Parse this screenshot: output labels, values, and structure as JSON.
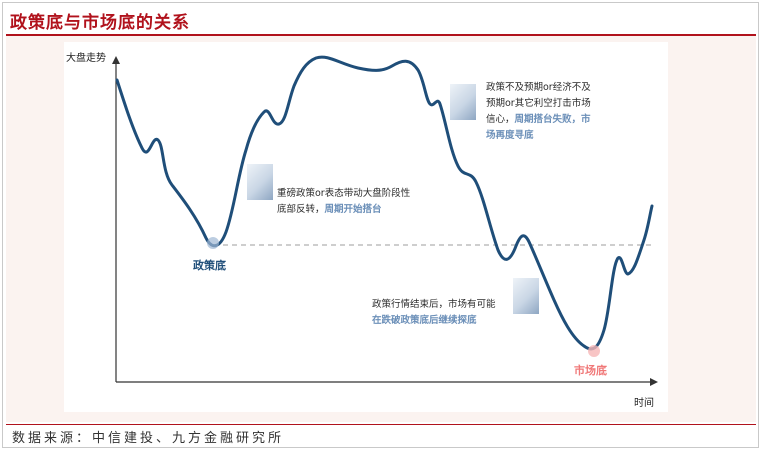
{
  "title": "政策底与市场底的关系",
  "source": "数据来源：中信建投、九方金融研究所",
  "chart": {
    "y_axis_label": "大盘走势",
    "x_axis_label": "时间",
    "policy_bottom_label": "政策底",
    "market_bottom_label": "市场底",
    "annotations": [
      {
        "line1": "重磅政策or表态带动大盘阶段性",
        "line2": "底部反转，",
        "highlight": "周期开始搭台"
      },
      {
        "line1": "政策不及预期or经济不及",
        "line2": "预期or其它利空打击市场",
        "line3": "信心，",
        "highlight": "周期搭台失败，市",
        "highlight2": "场再度寻底"
      },
      {
        "line1": "政策行情结束后，市场有可能",
        "highlight": "在跌破政策底后继续探底"
      }
    ],
    "colors": {
      "curve": "#1f4e79",
      "dashed": "#b0b0b0",
      "policy_label": "#1f4e79",
      "market_label": "#f07878",
      "title": "#b1121c"
    }
  }
}
